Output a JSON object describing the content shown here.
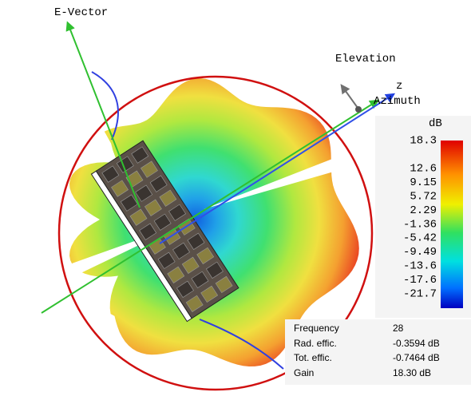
{
  "labels": {
    "e_vector": "E-Vector",
    "elevation": "Elevation",
    "z": "z",
    "azimuth": "Azimuth"
  },
  "colorbar": {
    "unit": "dB",
    "ticks": [
      "18.3",
      "12.6",
      "9.15",
      "5.72",
      "2.29",
      "-1.36",
      "-5.42",
      "-9.49",
      "-13.6",
      "-17.6",
      "-21.7"
    ]
  },
  "info": {
    "rows": [
      [
        "Frequency",
        "28"
      ],
      [
        "Rad. effic.",
        "-0.3594 dB"
      ],
      [
        "Tot. effic.",
        "-0.7464 dB"
      ],
      [
        "Gain",
        "18.30 dB"
      ]
    ]
  }
}
